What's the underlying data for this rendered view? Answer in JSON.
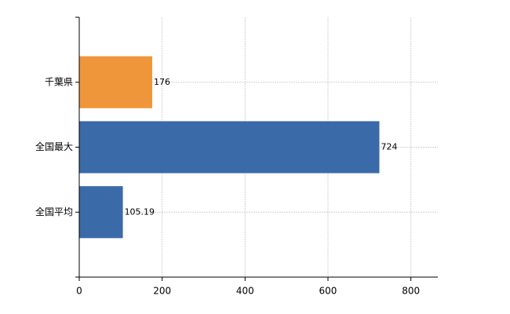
{
  "chart_data": {
    "type": "barh",
    "categories": [
      "千葉県",
      "全国最大",
      "全国平均"
    ],
    "values": [
      176,
      724,
      105.19
    ],
    "colors": [
      "#f0963a",
      "#3b6aa8",
      "#3b6aa8"
    ],
    "xlim": [
      0,
      865
    ],
    "xticks": [
      0,
      200,
      400,
      600,
      800
    ],
    "grid": true
  }
}
